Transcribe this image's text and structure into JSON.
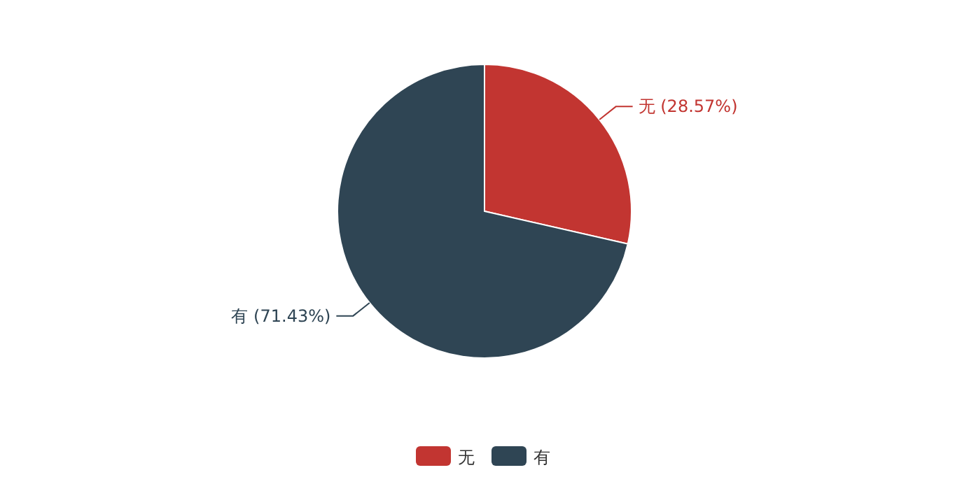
{
  "chart_data": {
    "type": "pie",
    "categories": [
      "无",
      "有"
    ],
    "values": [
      28.57,
      71.43
    ],
    "colors": [
      "#c23531",
      "#2f4554"
    ],
    "value_labels": [
      "无 (28.57%)",
      "有 (71.43%)"
    ],
    "legend": "bottom"
  }
}
